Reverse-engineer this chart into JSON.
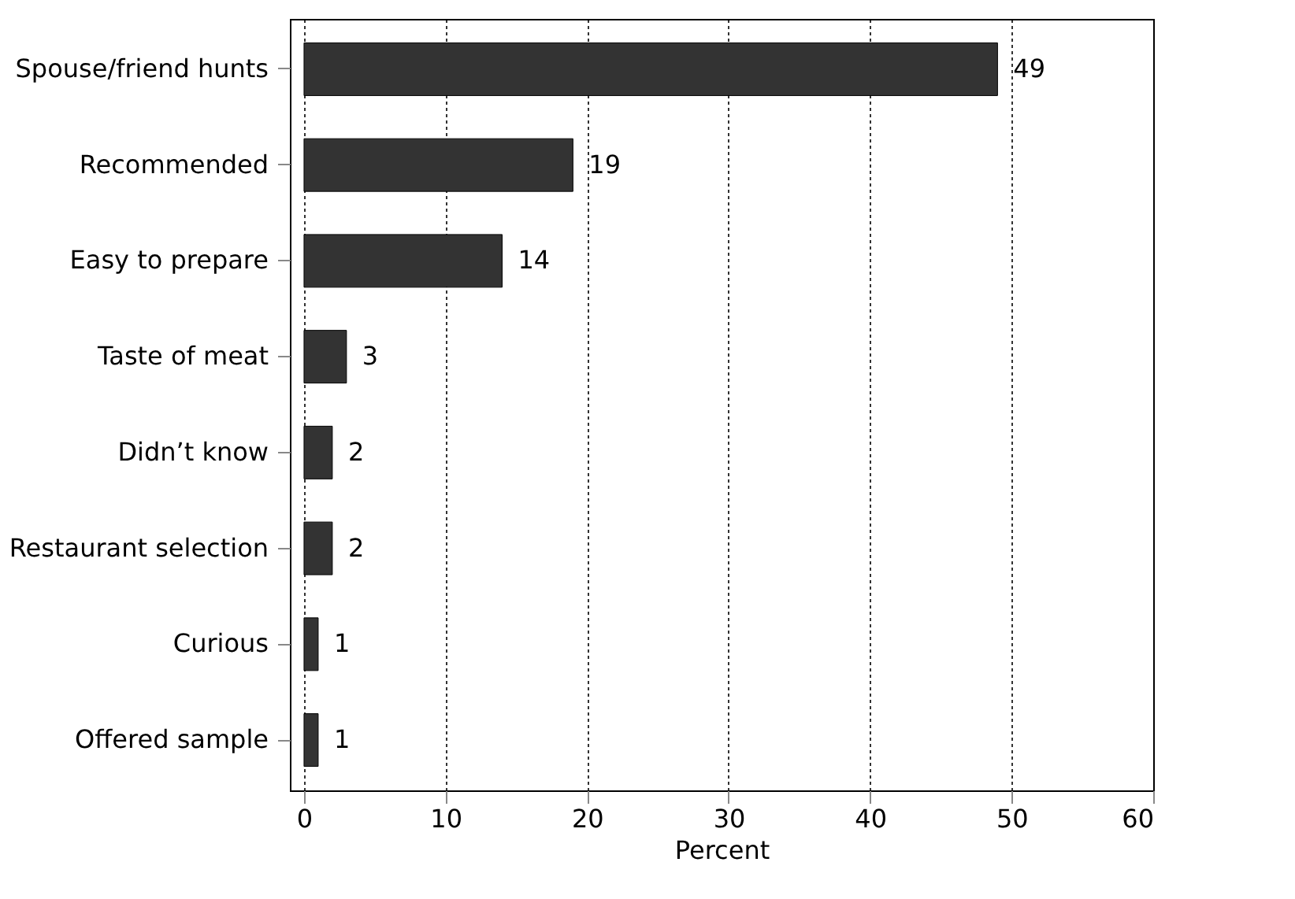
{
  "chart_data": {
    "type": "bar",
    "orientation": "horizontal",
    "xlabel": "Percent",
    "categories": [
      "Spouse/friend hunts",
      "Recommended",
      "Easy to prepare",
      "Taste of meat",
      "Didn’t know",
      "Restaurant selection",
      "Curious",
      "Offered sample"
    ],
    "values": [
      49,
      19,
      14,
      3,
      2,
      2,
      1,
      1
    ],
    "color": "#333333",
    "data_labels": true,
    "grid": "x",
    "xlim": [
      -1,
      60
    ],
    "xticks": [
      0,
      10,
      20,
      30,
      40,
      50,
      60
    ]
  }
}
